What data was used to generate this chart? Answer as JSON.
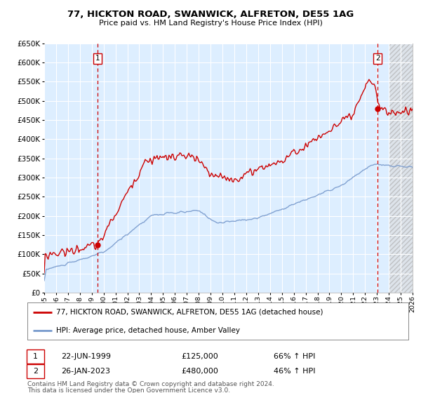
{
  "title": "77, HICKTON ROAD, SWANWICK, ALFRETON, DE55 1AG",
  "subtitle": "Price paid vs. HM Land Registry's House Price Index (HPI)",
  "legend_line1": "77, HICKTON ROAD, SWANWICK, ALFRETON, DE55 1AG (detached house)",
  "legend_line2": "HPI: Average price, detached house, Amber Valley",
  "sale1_date": "22-JUN-1999",
  "sale1_price": 125000,
  "sale1_hpi": "66% ↑ HPI",
  "sale2_date": "26-JAN-2023",
  "sale2_price": 480000,
  "sale2_hpi": "46% ↑ HPI",
  "footnote1": "Contains HM Land Registry data © Crown copyright and database right 2024.",
  "footnote2": "This data is licensed under the Open Government Licence v3.0.",
  "red_color": "#cc0000",
  "blue_color": "#7799cc",
  "bg_color": "#ddeeff",
  "ylim": [
    0,
    650000
  ],
  "yticks": [
    0,
    50000,
    100000,
    150000,
    200000,
    250000,
    300000,
    350000,
    400000,
    450000,
    500000,
    550000,
    600000,
    650000
  ],
  "sale1_x": 1999.47,
  "sale2_x": 2023.07,
  "xmin": 1995.0,
  "xmax": 2026.0,
  "hatch_start": 2024.0
}
